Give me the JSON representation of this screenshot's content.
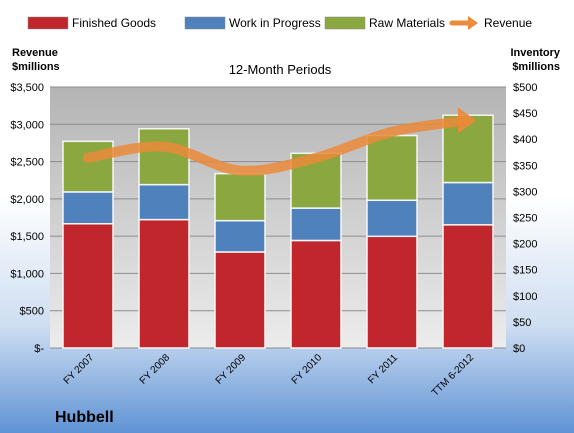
{
  "chart_data": {
    "type": "bar",
    "subtitle": "12-Month Periods",
    "company": "Hubbell",
    "categories": [
      "FY 2007",
      "FY 2008",
      "FY 2009",
      "FY 2010",
      "FY 2011",
      "TTM 6-2012"
    ],
    "y_left": {
      "label_line1": "Revenue",
      "label_line2": "$millions",
      "ylim": [
        0,
        3500
      ],
      "ticks": [
        0,
        500,
        1000,
        1500,
        2000,
        2500,
        3000,
        3500
      ],
      "tick_labels": [
        "$-",
        "$500",
        "$1,000",
        "$1,500",
        "$2,000",
        "$2,500",
        "$3,000",
        "$3,500"
      ]
    },
    "y_right": {
      "label_line1": "Inventory",
      "label_line2": "$millions",
      "ylim": [
        0,
        500
      ],
      "ticks": [
        0,
        50,
        100,
        150,
        200,
        250,
        300,
        350,
        400,
        450,
        500
      ],
      "tick_labels": [
        "$0",
        "$50",
        "$100",
        "$150",
        "$200",
        "$250",
        "$300",
        "$350",
        "$400",
        "$450",
        "$500"
      ]
    },
    "stacked_series": [
      {
        "name": "Finished Goods",
        "color": "#c0272d",
        "values": [
          238,
          246,
          184,
          206,
          214,
          236
        ]
      },
      {
        "name": "Work in Progress",
        "color": "#4f81bd",
        "values": [
          61,
          67,
          60,
          62,
          69,
          81
        ]
      },
      {
        "name": "Raw Materials",
        "color": "#8aa83f",
        "values": [
          97,
          107,
          90,
          105,
          124,
          129
        ]
      }
    ],
    "line_series": {
      "name": "Revenue",
      "color": "#ea8a3a",
      "values": [
        2550,
        2700,
        2380,
        2550,
        2900,
        3050
      ]
    },
    "grid": true,
    "legend": "top"
  }
}
